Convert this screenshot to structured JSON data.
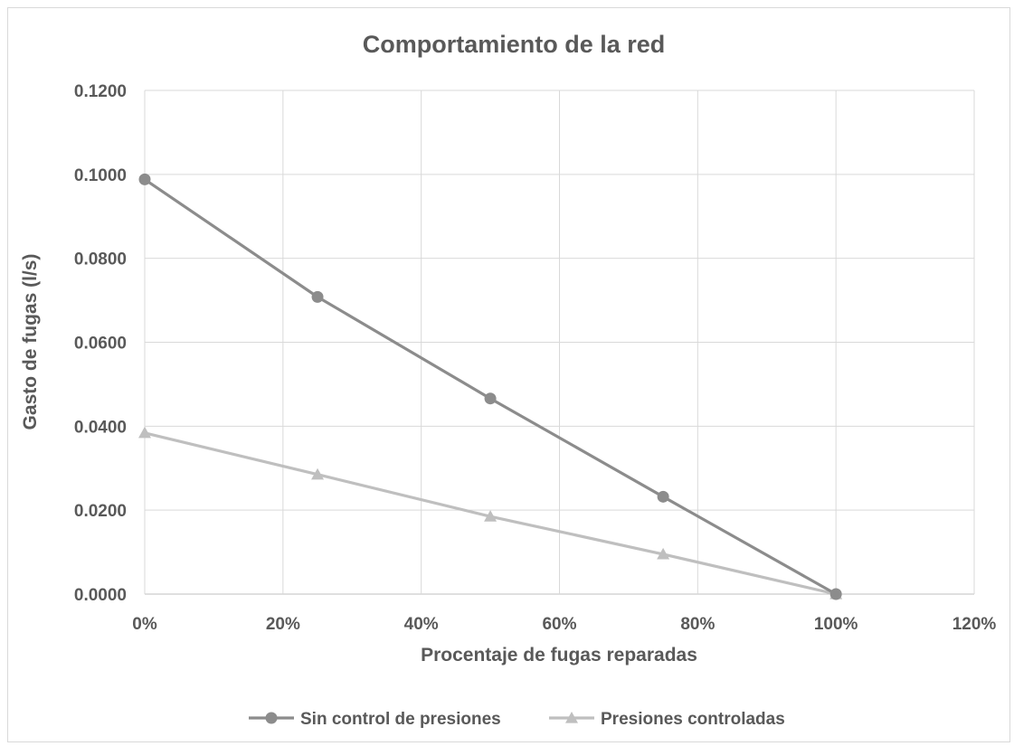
{
  "chart_data": {
    "type": "line",
    "title": "Comportamiento de la red",
    "xlabel": "Procentaje de fugas reparadas",
    "ylabel": "Gasto de fugas (l/s)",
    "x": [
      0,
      0.25,
      0.5,
      0.75,
      1.0
    ],
    "xlim": [
      0,
      1.2
    ],
    "ylim": [
      0,
      0.12
    ],
    "x_ticks": [
      "0%",
      "20%",
      "40%",
      "60%",
      "80%",
      "100%",
      "120%"
    ],
    "y_ticks": [
      "0.0000",
      "0.0200",
      "0.0400",
      "0.0600",
      "0.0800",
      "0.1000",
      "0.1200"
    ],
    "grid": true,
    "legend_position": "bottom",
    "series": [
      {
        "name": "Sin control de presiones",
        "marker": "circle",
        "color": "#8c8c8c",
        "values": [
          0.0988,
          0.0708,
          0.0466,
          0.0232,
          0.0
        ]
      },
      {
        "name": "Presiones controladas",
        "marker": "triangle",
        "color": "#bfbfbf",
        "values": [
          0.0384,
          0.0285,
          0.0185,
          0.0095,
          0.0
        ]
      }
    ]
  }
}
